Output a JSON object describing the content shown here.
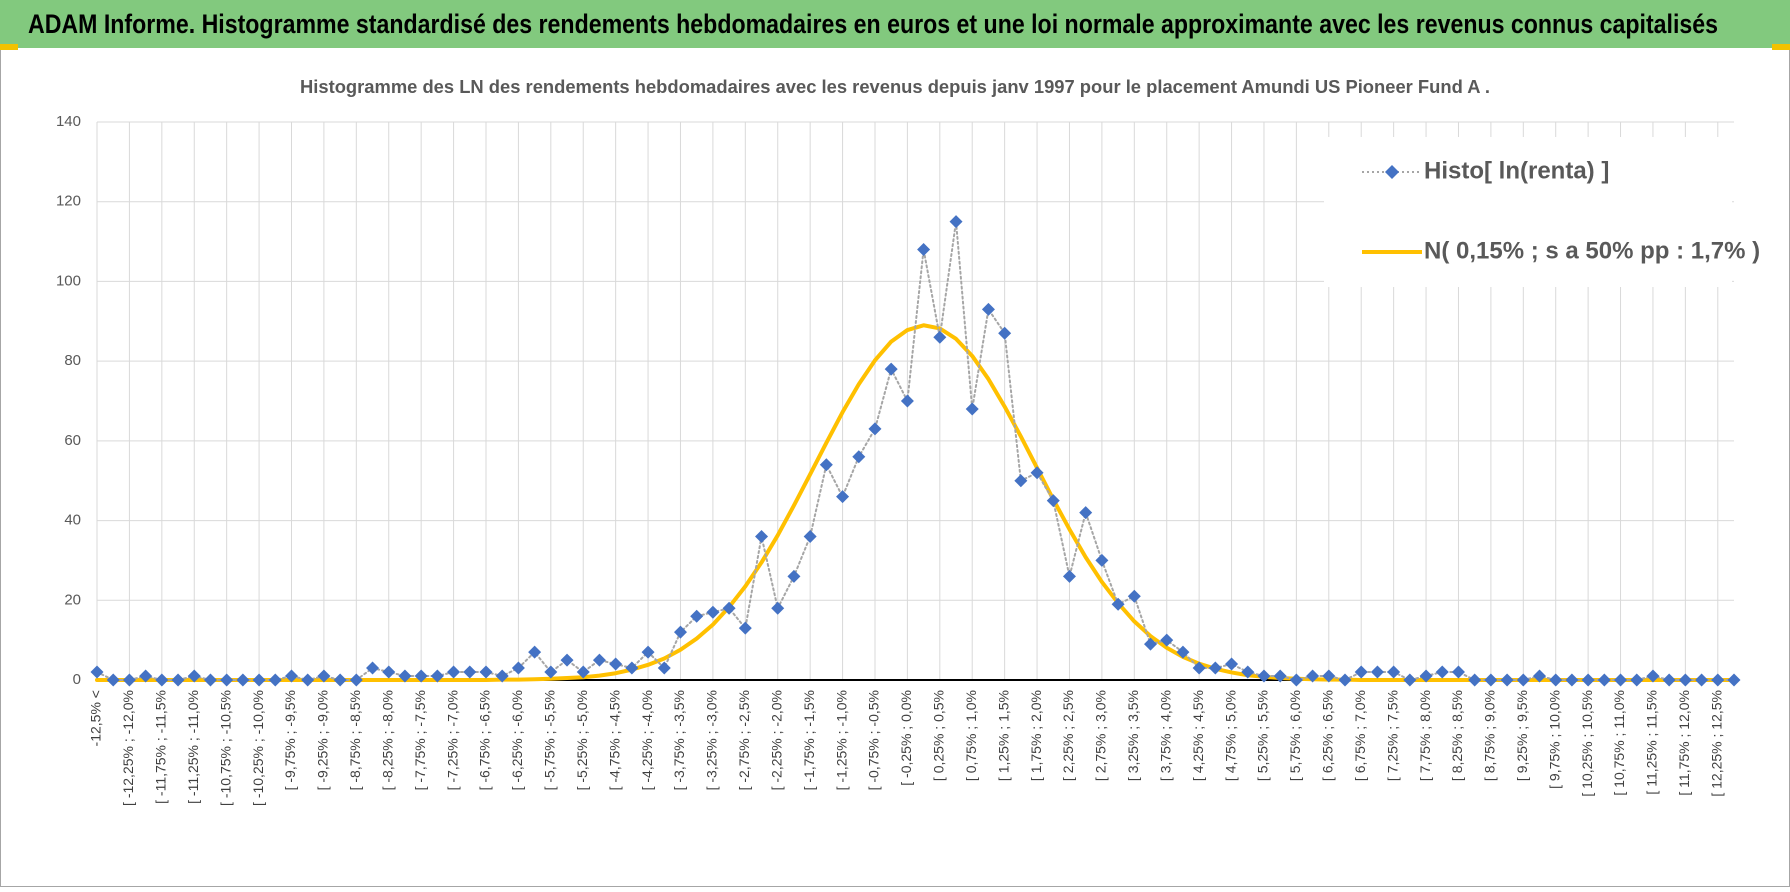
{
  "header": {
    "title": "ADAM Informe. Histogramme standardisé des rendements hebdomadaires en euros et une loi normale approximante avec les revenus connus capitalisés"
  },
  "chart_data": {
    "type": "line",
    "title": "Histogramme des LN des rendements hebdomadaires avec les revenus depuis janv 1997 pour le placement Amundi US Pioneer Fund A .",
    "categories": [
      "-12,5% <",
      null,
      "[ -12,25% ; -12,0%",
      null,
      "[ -11,75% ; -11,5%",
      null,
      "[ -11,25% ; -11,0%",
      null,
      "[ -10,75% ; -10,5%",
      null,
      "[ -10,25% ; -10,0%",
      null,
      "[ -9,75% ; -9,5%",
      null,
      "[ -9,25% ; -9,0%",
      null,
      "[ -8,75% ; -8,5%",
      null,
      "[ -8,25% ; -8,0%",
      null,
      "[ -7,75% ; -7,5%",
      null,
      "[ -7,25% ; -7,0%",
      null,
      "[ -6,75% ; -6,5%",
      null,
      "[ -6,25% ; -6,0%",
      null,
      "[ -5,75% ; -5,5%",
      null,
      "[ -5,25% ; -5,0%",
      null,
      "[ -4,75% ; -4,5%",
      null,
      "[ -4,25% ; -4,0%",
      null,
      "[ -3,75% ; -3,5%",
      null,
      "[ -3,25% ; -3,0%",
      null,
      "[ -2,75% ; -2,5%",
      null,
      "[ -2,25% ; -2,0%",
      null,
      "[ -1,75% ; -1,5%",
      null,
      "[ -1,25% ; -1,0%",
      null,
      "[ -0,75% ; -0,5%",
      null,
      "[ -0,25% ; 0,0%",
      null,
      "[ 0,25% ; 0,5%",
      null,
      "[ 0,75% ; 1,0%",
      null,
      "[ 1,25% ; 1,5%",
      null,
      "[ 1,75% ; 2,0%",
      null,
      "[ 2,25% ; 2,5%",
      null,
      "[ 2,75% ; 3,0%",
      null,
      "[ 3,25% ; 3,5%",
      null,
      "[ 3,75% ; 4,0%",
      null,
      "[ 4,25% ; 4,5%",
      null,
      "[ 4,75% ; 5,0%",
      null,
      "[ 5,25% ; 5,5%",
      null,
      "[ 5,75% ; 6,0%",
      null,
      "[ 6,25% ; 6,5%",
      null,
      "[ 6,75% ; 7,0%",
      null,
      "[ 7,25% ; 7,5%",
      null,
      "[ 7,75% ; 8,0%",
      null,
      "[ 8,25% ; 8,5%",
      null,
      "[ 8,75% ; 9,0%",
      null,
      "[ 9,25% ; 9,5%",
      null,
      "[ 9,75% ; 10,0%",
      null,
      "[ 10,25% ; 10,5%",
      null,
      "[ 10,75% ; 11,0%",
      null,
      "[ 11,25% ; 11,5%",
      null,
      "[ 11,75% ; 12,0%",
      null,
      "[ 12,25% ; 12,5%",
      null
    ],
    "series": [
      {
        "name": "Histo[ ln(renta) ]",
        "color": "#4472c4",
        "line_color": "#a6a6a6",
        "marker": "diamond",
        "line_style": "dotted",
        "values": [
          2,
          0,
          0,
          1,
          0,
          0,
          1,
          0,
          0,
          0,
          0,
          0,
          1,
          0,
          1,
          0,
          0,
          3,
          2,
          1,
          1,
          1,
          2,
          2,
          2,
          1,
          3,
          7,
          2,
          5,
          2,
          5,
          4,
          3,
          7,
          3,
          12,
          16,
          17,
          18,
          13,
          36,
          18,
          26,
          36,
          54,
          46,
          56,
          63,
          78,
          70,
          108,
          86,
          115,
          68,
          93,
          87,
          50,
          52,
          45,
          26,
          42,
          30,
          19,
          21,
          9,
          10,
          7,
          3,
          3,
          4,
          2,
          1,
          1,
          0,
          1,
          1,
          0,
          2,
          2,
          2,
          0,
          1,
          2,
          2,
          0,
          0,
          0,
          0,
          1,
          0,
          0,
          0,
          0,
          0,
          0,
          1,
          0,
          0,
          0,
          0,
          0
        ]
      },
      {
        "name": "N( 0,15% ; s a 50% pp : 1,7% )",
        "color": "#ffc000",
        "marker": "none",
        "line_style": "solid",
        "values": [
          0,
          0,
          0,
          0,
          0,
          0,
          0,
          0,
          0,
          0,
          0,
          0,
          0,
          0,
          0,
          0,
          0,
          0,
          0,
          0,
          0,
          0,
          0,
          0,
          0,
          0.1,
          0.1,
          0.2,
          0.3,
          0.5,
          0.7,
          1.1,
          1.7,
          2.6,
          3.8,
          5.4,
          7.6,
          10.4,
          13.9,
          18.3,
          23.5,
          29.5,
          36.3,
          43.8,
          51.6,
          59.5,
          67.2,
          74.2,
          80.2,
          84.9,
          87.8,
          89.0,
          88.2,
          85.6,
          81.3,
          75.5,
          68.6,
          61.1,
          53.2,
          45.3,
          37.8,
          30.8,
          24.6,
          19.3,
          14.7,
          11.0,
          8.1,
          5.8,
          4.1,
          2.8,
          1.9,
          1.2,
          0.8,
          0.5,
          0.3,
          0.2,
          0.1,
          0.1,
          0,
          0,
          0,
          0,
          0,
          0,
          0,
          0,
          0,
          0,
          0,
          0,
          0,
          0,
          0,
          0,
          0,
          0,
          0,
          0,
          0,
          0,
          0,
          0
        ]
      }
    ],
    "ylim": [
      0,
      140
    ],
    "yticks": [
      0,
      20,
      40,
      60,
      80,
      100,
      120,
      140
    ],
    "grid": true,
    "legend": "top-right"
  }
}
